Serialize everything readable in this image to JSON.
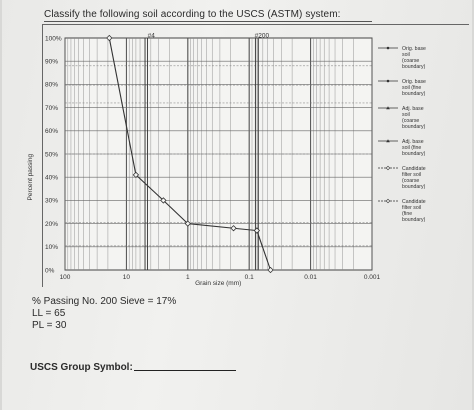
{
  "title": "Classify the following soil according to the USCS (ASTM) system:",
  "chart_data": {
    "type": "line",
    "xlabel": "Grain size (mm)",
    "ylabel": "Percent passing",
    "xscale": "log",
    "xreversed": true,
    "xlim": [
      100,
      0.001
    ],
    "ylim": [
      0,
      100
    ],
    "xticks": [
      "100",
      "10",
      "1",
      "0.1",
      "0.01",
      "0.001"
    ],
    "yticks": [
      "0%",
      "10%",
      "20%",
      "30%",
      "40%",
      "50%",
      "60%",
      "70%",
      "80%",
      "90%",
      "100%"
    ],
    "sieve_labels": [
      "#4",
      "#200"
    ],
    "grid": true,
    "series": [
      {
        "name": "Orig. base soil (coarse boundary)",
        "color": "#333333",
        "marker": "diamond",
        "x": [
          19,
          7,
          2.5,
          1,
          0.18,
          0.075,
          0.045
        ],
        "y": [
          100,
          41,
          30,
          20,
          18,
          17,
          0
        ]
      }
    ],
    "legend_entries": [
      [
        "Orig. base",
        "soil",
        "(coarse",
        "boundary)"
      ],
      [
        "Orig. base",
        "soil (fine",
        "boundary)"
      ],
      [
        "Adj. base",
        "soil",
        "(coarse",
        "boundary)"
      ],
      [
        "Adj. base",
        "soil (fine",
        "boundary)"
      ],
      [
        "Candidate",
        "filter soil",
        "(coarse",
        "boundary)"
      ],
      [
        "Candidate",
        "filter soil",
        "(fine",
        "boundary)"
      ]
    ],
    "legend_position": "right"
  },
  "notes": {
    "passing": "% Passing No. 200 Sieve = 17%",
    "ll": "LL = 65",
    "pl": "PL = 30"
  },
  "answer": {
    "label": "USCS Group Symbol:"
  }
}
